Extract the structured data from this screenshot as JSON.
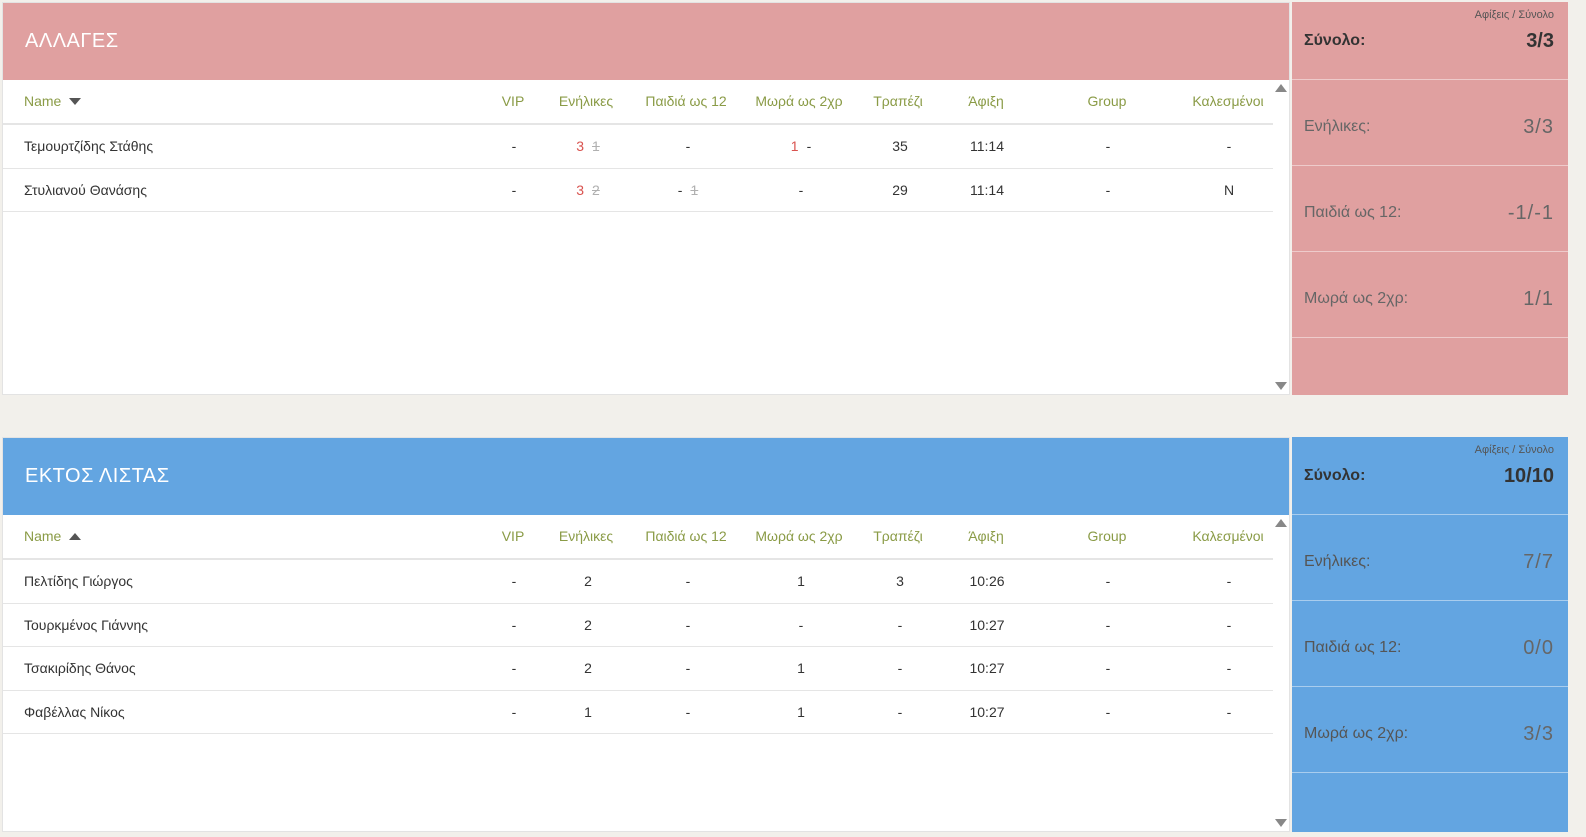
{
  "columns": {
    "name": "Name",
    "vip": "VIP",
    "adults": "Ενήλικες",
    "children": "Παιδιά ως 12",
    "babies": "Μωρά ως 2χρ",
    "table": "Τραπέζι",
    "arrival": "Άφιξη",
    "group": "Group",
    "invited": "Καλεσμένοι"
  },
  "changes": {
    "title": "ΑΛΛΑΓΕΣ",
    "color": "#e0a0a0",
    "sort": "desc",
    "rows": [
      {
        "name": "Τεμουρτζίδης Στάθης",
        "vip": "-",
        "adults": "3",
        "adults_old": "1",
        "children": "-",
        "children_old": "",
        "babies": "1",
        "babies_old": "-",
        "table": "35",
        "arrival": "11:14",
        "group": "-",
        "invited": "-"
      },
      {
        "name": "Στυλιανού Θανάσης",
        "vip": "-",
        "adults": "3",
        "adults_old": "2",
        "children": "-",
        "children_old": "1",
        "babies": "-",
        "babies_old": "",
        "table": "29",
        "arrival": "11:14",
        "group": "-",
        "invited": "N"
      }
    ],
    "summary": {
      "caption": "Αφίξεις / Σύνολο",
      "total_label": "Σύνολο:",
      "total_value": "3/3",
      "adults_label": "Ενήλικες:",
      "adults_value": "3/3",
      "children_label": "Παιδιά ως 12:",
      "children_value": "-1/-1",
      "babies_label": "Μωρά ως 2χρ:",
      "babies_value": "1/1"
    }
  },
  "offlist": {
    "title": "ΕΚΤΟΣ ΛΙΣΤΑΣ",
    "color": "#63a5e1",
    "sort": "asc",
    "rows": [
      {
        "name": "Πελτίδης Γιώργος",
        "vip": "-",
        "adults": "2",
        "children": "-",
        "babies": "1",
        "table": "3",
        "arrival": "10:26",
        "group": "-",
        "invited": "-"
      },
      {
        "name": "Τουρκμένος Γιάννης",
        "vip": "-",
        "adults": "2",
        "children": "-",
        "babies": "-",
        "table": "-",
        "arrival": "10:27",
        "group": "-",
        "invited": "-"
      },
      {
        "name": "Τσακιρίδης Θάνος",
        "vip": "-",
        "adults": "2",
        "children": "-",
        "babies": "1",
        "table": "-",
        "arrival": "10:27",
        "group": "-",
        "invited": "-"
      },
      {
        "name": "Φαβέλλας Νίκος",
        "vip": "-",
        "adults": "1",
        "children": "-",
        "babies": "1",
        "table": "-",
        "arrival": "10:27",
        "group": "-",
        "invited": "-"
      }
    ],
    "summary": {
      "caption": "Αφίξεις / Σύνολο",
      "total_label": "Σύνολο:",
      "total_value": "10/10",
      "adults_label": "Ενήλικες:",
      "adults_value": "7/7",
      "children_label": "Παιδιά ως 12:",
      "children_value": "0/0",
      "babies_label": "Μωρά ως 2χρ:",
      "babies_value": "3/3"
    }
  },
  "icons": {
    "sort_desc": "caret-down-icon",
    "sort_asc": "caret-up-icon",
    "scroll_up": "scroll-up-arrow-icon",
    "scroll_down": "scroll-down-arrow-icon"
  }
}
